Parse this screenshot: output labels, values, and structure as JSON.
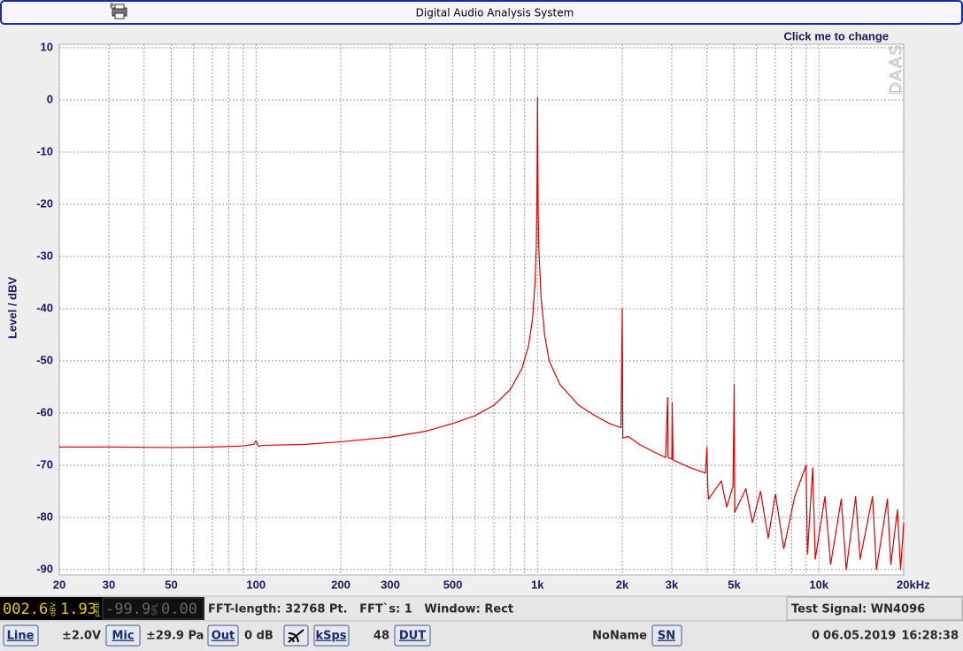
{
  "window": {
    "title": "Digital Audio Analysis System"
  },
  "chart_data": {
    "type": "line",
    "annotation": "Click me to change",
    "watermark": "DAAS",
    "ylabel": "Level / dBV",
    "color": "#dd0000",
    "xscale": "log",
    "grid": true,
    "xlim": [
      20,
      20000
    ],
    "ylim": [
      -90,
      10
    ],
    "yticks": [
      10,
      0,
      -10,
      -20,
      -30,
      -40,
      -50,
      -60,
      -70,
      -80,
      -90
    ],
    "xticks": [
      20,
      30,
      50,
      100,
      200,
      300,
      500,
      {
        "value": 1000,
        "label": "1k"
      },
      {
        "value": 2000,
        "label": "2k"
      },
      {
        "value": 3000,
        "label": "3k"
      },
      {
        "value": 5000,
        "label": "5k"
      },
      {
        "value": 10000,
        "label": "10k"
      },
      {
        "value": 20000,
        "label": "20kHz"
      }
    ],
    "xminorticks": [
      40,
      60,
      70,
      80,
      90,
      400,
      600,
      700,
      800,
      900,
      4000,
      6000,
      7000,
      8000,
      9000
    ],
    "x": [
      20,
      30,
      50,
      70,
      90,
      98,
      100,
      102,
      105,
      150,
      200,
      300,
      400,
      500,
      600,
      700,
      800,
      880,
      930,
      960,
      980,
      990,
      995,
      1000,
      1005,
      1010,
      1030,
      1060,
      1100,
      1200,
      1400,
      1600,
      1800,
      1980,
      2000,
      2010,
      2100,
      2300,
      2600,
      2850,
      2900,
      2910,
      3000,
      3010,
      3030,
      3500,
      3950,
      4000,
      4020,
      4050,
      4500,
      4700,
      4950,
      5000,
      5020,
      5500,
      5800,
      6200,
      6600,
      7000,
      7500,
      8200,
      9000,
      9100,
      9500,
      9700,
      10500,
      11000,
      12000,
      12500,
      13500,
      14000,
      15500,
      16000,
      17500,
      18000,
      19000,
      19500,
      20000
    ],
    "values": [
      -66.5,
      -66.5,
      -66.6,
      -66.5,
      -66.3,
      -66.0,
      -65.3,
      -66.4,
      -66.2,
      -66.0,
      -65.5,
      -64.6,
      -63.5,
      -62.0,
      -60.5,
      -58.5,
      -55.5,
      -51.5,
      -47,
      -42,
      -35,
      -28,
      -20,
      0.5,
      -20,
      -28,
      -38,
      -45,
      -50,
      -54.5,
      -58.5,
      -60.5,
      -62,
      -62.8,
      -40,
      -64.8,
      -64.5,
      -66,
      -67.5,
      -68.5,
      -57,
      -68.5,
      -68.8,
      -58,
      -69,
      -70.5,
      -71.5,
      -66.5,
      -73,
      -76.5,
      -73,
      -78,
      -74,
      -54.5,
      -79,
      -74.5,
      -81,
      -75,
      -84,
      -75.5,
      -86,
      -76,
      -70,
      -87,
      -70.5,
      -88,
      -76,
      -89,
      -76.5,
      -90,
      -76,
      -88,
      -76,
      -90,
      -76.5,
      -89,
      -78.5,
      -90,
      -81
    ]
  },
  "status": {
    "lcd_level": "002.6",
    "lcd_level_unit": "dBV",
    "lcd_peak": "1.93",
    "lcd_peak_label": "peak",
    "lcd_spl": "-99.9",
    "lcd_spl_unit": "SPL",
    "lcd_spl_peak": "0.00",
    "fft_info": "FFT-length: 32768 Pt.   FFT`s: 1   Window: Rect",
    "test_signal": "Test Signal: WN4096"
  },
  "toolbar": {
    "input": "Line",
    "input_range": "±2.0V",
    "mic": "Mic",
    "mic_range": "±29.9 Pa",
    "output": "Out",
    "output_level": "0 dB",
    "rate_button": "kSps",
    "rate": 48,
    "dut": "DUT",
    "dut_name": "NoName",
    "sn": "SN",
    "sn_value": 0,
    "date": "06.05.2019",
    "time": "16:28:38"
  }
}
